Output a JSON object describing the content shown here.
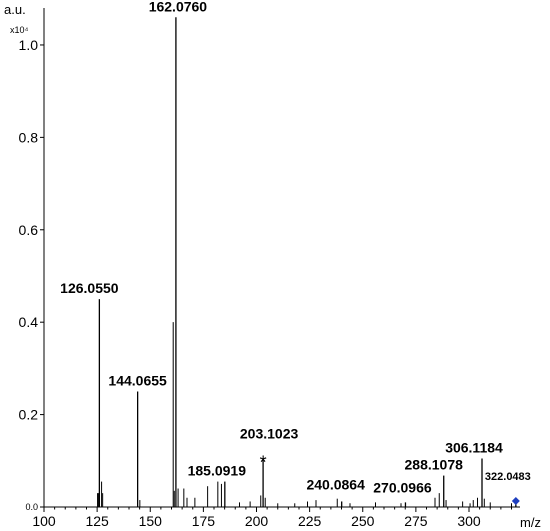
{
  "chart_data": {
    "type": "bar",
    "subtype": "mass-spectrum",
    "title": "",
    "xlabel": "m/z",
    "ylabel": "a.u.",
    "y_multiplier": "x10⁴",
    "xlim": [
      100,
      324
    ],
    "ylim": [
      0,
      1.08
    ],
    "x_ticks": [
      100,
      125,
      150,
      175,
      200,
      225,
      250,
      275,
      300
    ],
    "y_ticks": [
      0.0,
      0.2,
      0.4,
      0.6,
      0.8,
      1.0
    ],
    "y_tick_labels": [
      "0.0",
      "0.2",
      "0.4",
      "0.6",
      "0.8",
      "1.0"
    ],
    "grid": false,
    "legend": "none",
    "peaks": [
      {
        "mz": 126.055,
        "intensity": 0.45,
        "label": "126.0550"
      },
      {
        "mz": 144.0655,
        "intensity": 0.25,
        "label": "144.0655"
      },
      {
        "mz": 162.076,
        "intensity": 1.06,
        "label": "162.0760"
      },
      {
        "mz": 185.0919,
        "intensity": 0.055,
        "label": "185.0919"
      },
      {
        "mz": 203.1023,
        "intensity": 0.105,
        "label": "203.1023",
        "marker": "*"
      },
      {
        "mz": 240.0864,
        "intensity": 0.012,
        "label": "240.0864"
      },
      {
        "mz": 270.0966,
        "intensity": 0.01,
        "label": "270.0966"
      },
      {
        "mz": 288.1078,
        "intensity": 0.068,
        "label": "288.1078"
      },
      {
        "mz": 306.1184,
        "intensity": 0.105,
        "label": "306.1184"
      },
      {
        "mz": 322.0483,
        "intensity": 0.015,
        "label": "322.0483",
        "marker": "diamond"
      }
    ],
    "minor_peaks": [
      {
        "mz": 125.2,
        "intensity": 0.03
      },
      {
        "mz": 125.6,
        "intensity": 0.03
      },
      {
        "mz": 127.1,
        "intensity": 0.055
      },
      {
        "mz": 127.6,
        "intensity": 0.03
      },
      {
        "mz": 145.1,
        "intensity": 0.015
      },
      {
        "mz": 160.8,
        "intensity": 0.4
      },
      {
        "mz": 161.3,
        "intensity": 0.035
      },
      {
        "mz": 163.1,
        "intensity": 0.04
      },
      {
        "mz": 165.8,
        "intensity": 0.04
      },
      {
        "mz": 167.3,
        "intensity": 0.02
      },
      {
        "mz": 171.0,
        "intensity": 0.02
      },
      {
        "mz": 177.0,
        "intensity": 0.045
      },
      {
        "mz": 181.8,
        "intensity": 0.055
      },
      {
        "mz": 183.5,
        "intensity": 0.05
      },
      {
        "mz": 192.0,
        "intensity": 0.01
      },
      {
        "mz": 197.0,
        "intensity": 0.012
      },
      {
        "mz": 202.0,
        "intensity": 0.025
      },
      {
        "mz": 204.1,
        "intensity": 0.02
      },
      {
        "mz": 210.0,
        "intensity": 0.008
      },
      {
        "mz": 218.0,
        "intensity": 0.008
      },
      {
        "mz": 224.0,
        "intensity": 0.012
      },
      {
        "mz": 228.0,
        "intensity": 0.015
      },
      {
        "mz": 238.0,
        "intensity": 0.018
      },
      {
        "mz": 244.0,
        "intensity": 0.008
      },
      {
        "mz": 256.0,
        "intensity": 0.01
      },
      {
        "mz": 268.0,
        "intensity": 0.008
      },
      {
        "mz": 284.0,
        "intensity": 0.02
      },
      {
        "mz": 286.0,
        "intensity": 0.03
      },
      {
        "mz": 289.2,
        "intensity": 0.015
      },
      {
        "mz": 297.0,
        "intensity": 0.012
      },
      {
        "mz": 300.5,
        "intensity": 0.008
      },
      {
        "mz": 302.0,
        "intensity": 0.015
      },
      {
        "mz": 304.0,
        "intensity": 0.02
      },
      {
        "mz": 307.2,
        "intensity": 0.018
      },
      {
        "mz": 310.0,
        "intensity": 0.01
      },
      {
        "mz": 320.0,
        "intensity": 0.008
      }
    ]
  }
}
